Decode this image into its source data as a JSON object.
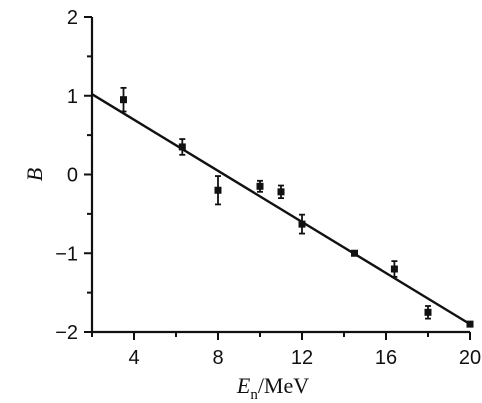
{
  "chart_data": {
    "type": "scatter",
    "title": "",
    "xlabel_main": "E",
    "xlabel_sub": "n",
    "xlabel_unit": "/MeV",
    "ylabel": "B",
    "xlim": [
      2,
      20
    ],
    "ylim": [
      -2,
      2
    ],
    "xticks": [
      4,
      8,
      12,
      16,
      20
    ],
    "yticks": [
      2,
      1,
      0,
      -1,
      -2
    ],
    "xtick_labels": [
      "4",
      "8",
      "12",
      "16",
      "20"
    ],
    "ytick_labels": [
      "2",
      "1",
      "0",
      "−1",
      "−2"
    ],
    "grid": false,
    "series": [
      {
        "points": [
          {
            "x": 3.5,
            "y": 0.95,
            "err": 0.15
          },
          {
            "x": 6.3,
            "y": 0.35,
            "err": 0.1
          },
          {
            "x": 8.0,
            "y": -0.2,
            "err": 0.18
          },
          {
            "x": 10.0,
            "y": -0.15,
            "err": 0.07
          },
          {
            "x": 11.0,
            "y": -0.22,
            "err": 0.08
          },
          {
            "x": 12.0,
            "y": -0.63,
            "err": 0.12
          },
          {
            "x": 14.5,
            "y": -1.0,
            "err": 0.02
          },
          {
            "x": 16.4,
            "y": -1.2,
            "err": 0.1
          },
          {
            "x": 18.0,
            "y": -1.75,
            "err": 0.08
          },
          {
            "x": 20.0,
            "y": -1.9,
            "err": 0.03
          }
        ]
      }
    ],
    "fit_line": {
      "x": [
        2,
        20
      ],
      "y": [
        1.02,
        -1.9
      ]
    }
  }
}
